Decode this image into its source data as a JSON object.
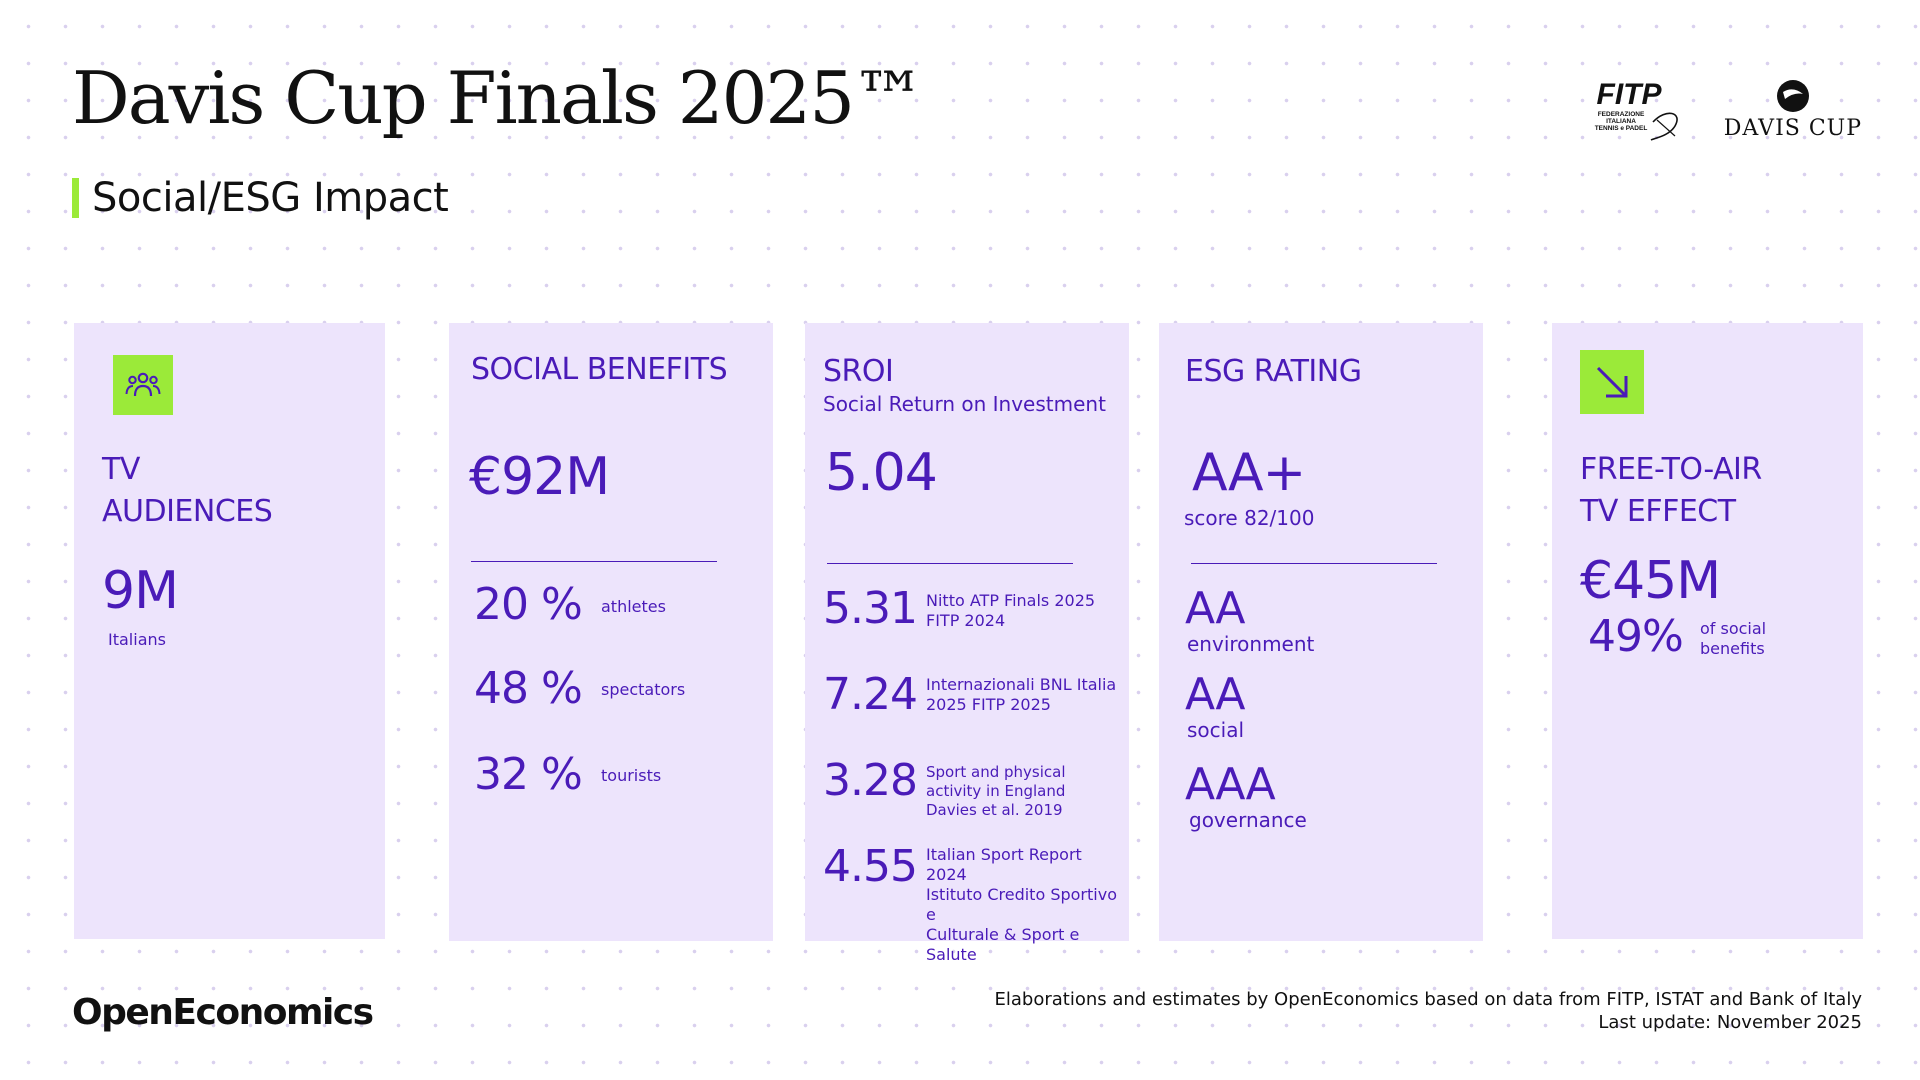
{
  "title": "Davis Cup Finals 2025™",
  "subtitle": "Social/ESG Impact",
  "logos": {
    "fitp": "FITP",
    "davis_cup": "DAVIS CUP"
  },
  "colors": {
    "accent_green": "#9bea39",
    "card_bg": "#ede4fc",
    "text_purple": "#4a1bb8"
  },
  "tv_audiences": {
    "icon": "people-group-icon",
    "heading_line1": "TV",
    "heading_line2": "AUDIENCES",
    "value": "9M",
    "unit": "Italians"
  },
  "social_benefits": {
    "heading": "SOCIAL BENEFITS",
    "value": "€92M",
    "items": [
      {
        "pct": "20 %",
        "label": "athletes"
      },
      {
        "pct": "48 %",
        "label": "spectators"
      },
      {
        "pct": "32 %",
        "label": "tourists"
      }
    ]
  },
  "sroi": {
    "heading": "SROI",
    "subheading": "Social Return on Investment",
    "value": "5.04",
    "comparisons": [
      {
        "value": "5.31",
        "line1": "Nitto ATP Finals 2025",
        "line2": "FITP 2024",
        "line3": ""
      },
      {
        "value": "7.24",
        "line1": "Internazionali BNL Italia",
        "line2": "2025 FITP 2025",
        "line3": ""
      },
      {
        "value": "3.28",
        "line1": "Sport and physical activity in England",
        "line2": "Davies et al. 2019",
        "line3": ""
      },
      {
        "value": "4.55",
        "line1": "Italian Sport Report 2024",
        "line2": "Istituto Credito Sportivo e",
        "line3": "Culturale & Sport e Salute"
      }
    ]
  },
  "esg_rating": {
    "heading": "ESG RATING",
    "value": "AA+",
    "score": "score 82/100",
    "items": [
      {
        "rating": "AA",
        "label": "environment"
      },
      {
        "rating": "AA",
        "label": "social"
      },
      {
        "rating": "AAA",
        "label": "governance"
      }
    ]
  },
  "free_to_air": {
    "icon": "arrow-down-right-icon",
    "heading_line1": "FREE-TO-AIR",
    "heading_line2": "TV EFFECT",
    "value": "€45M",
    "pct": "49%",
    "pct_label_line1": "of social",
    "pct_label_line2": "benefits"
  },
  "footer": {
    "brand": "OpenEconomics",
    "source": "Elaborations and estimates by OpenEconomics based on data from FITP, ISTAT and Bank of Italy",
    "update": "Last update: November 2025"
  }
}
